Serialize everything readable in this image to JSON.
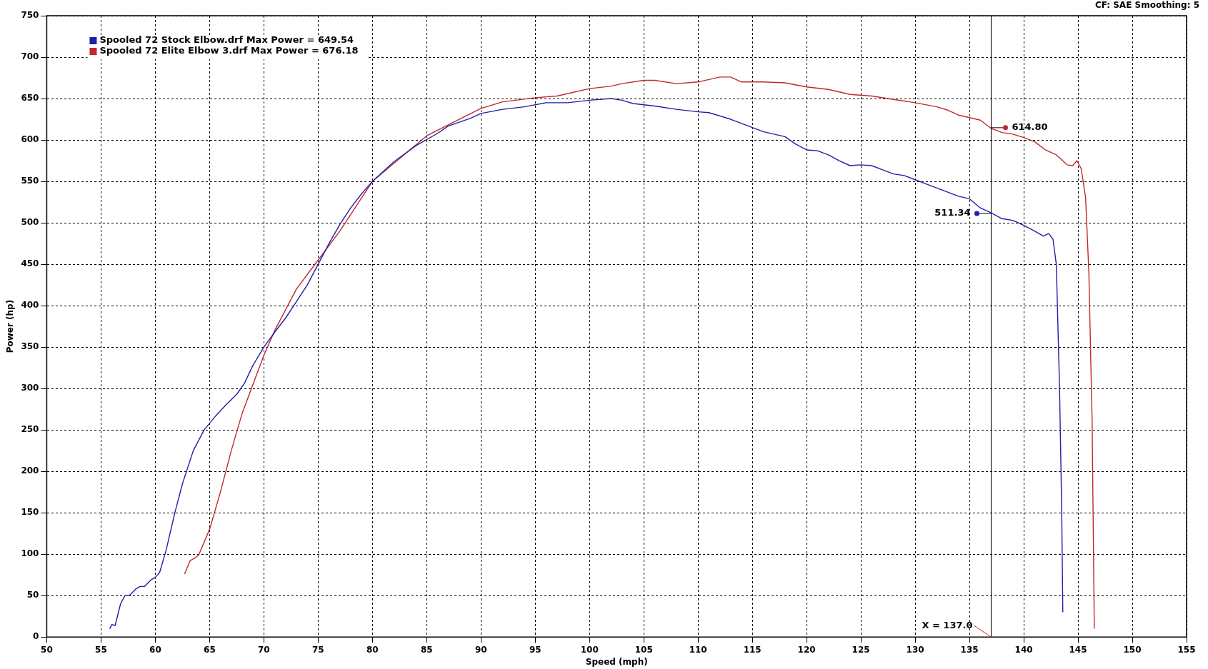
{
  "chart_data": {
    "type": "line",
    "xlabel": "Speed (mph)",
    "ylabel": "Power (hp)",
    "xlim": [
      50,
      155
    ],
    "xticks": [
      50,
      55,
      60,
      65,
      70,
      75,
      80,
      85,
      90,
      95,
      100,
      105,
      110,
      115,
      120,
      125,
      130,
      135,
      140,
      145,
      150,
      155
    ],
    "ylim": [
      0,
      750
    ],
    "yticks": [
      0,
      50,
      100,
      150,
      200,
      250,
      300,
      350,
      400,
      450,
      500,
      550,
      600,
      650,
      700,
      750
    ],
    "grid": true,
    "legend": "top left",
    "marker": "none",
    "line_style": "solid",
    "series": [
      {
        "name": "Spooled 72 Stock Elbow.drf Max Power = 649.54",
        "color": "#1f1fa8",
        "x": [
          55.8,
          56.0,
          56.3,
          56.8,
          57.2,
          57.6,
          58.2,
          58.6,
          59.0,
          59.6,
          60.0,
          60.4,
          61.0,
          61.8,
          62.5,
          63.5,
          64.5,
          65.5,
          66.5,
          67.5,
          68.2,
          69.0,
          70.0,
          71.0,
          72.0,
          73.0,
          74.0,
          75.0,
          76.0,
          77.0,
          78.0,
          79.0,
          80.0,
          82,
          84,
          86,
          87,
          89,
          90,
          92,
          94,
          96,
          98,
          100,
          102,
          103,
          104,
          106,
          108,
          110,
          111,
          113,
          115,
          116,
          118,
          119,
          120,
          121,
          122,
          123,
          124,
          125,
          126,
          127,
          128,
          129,
          130,
          131,
          132,
          133,
          134,
          135,
          136,
          137,
          138,
          139,
          140,
          141,
          141.8,
          142.3,
          142.7,
          143,
          143.3,
          143.5,
          143.6
        ],
        "values": [
          10,
          15,
          14,
          40,
          50,
          50,
          58,
          61,
          61,
          69,
          72,
          78,
          105,
          150,
          185,
          225,
          250,
          266,
          280,
          293,
          306,
          328,
          350,
          368,
          385,
          405,
          425,
          450,
          475,
          498,
          518,
          535,
          550,
          574,
          593,
          608,
          617,
          626,
          632,
          637,
          640,
          645,
          645,
          648,
          650,
          648,
          644,
          641,
          637,
          634,
          633,
          625,
          615,
          610,
          604,
          595,
          588,
          587,
          582,
          575,
          569,
          570,
          569,
          564,
          559,
          557,
          552,
          547,
          542,
          537,
          532,
          529,
          518,
          512,
          505,
          503,
          497,
          490,
          484,
          487,
          480,
          450,
          300,
          150,
          30
        ]
      },
      {
        "name": "Spooled 72 Elite Elbow 3.drf Max Power = 676.18",
        "color": "#c0282d",
        "x": [
          62.7,
          63.2,
          63.6,
          64,
          65,
          66,
          67,
          68,
          69,
          70,
          71,
          72,
          73,
          75,
          77,
          80,
          85,
          88,
          90,
          92,
          95,
          97,
          100,
          102,
          103,
          105,
          106,
          108,
          110,
          112,
          113,
          114,
          116,
          118,
          120,
          122,
          124,
          126,
          128,
          130,
          132,
          133,
          134,
          135,
          136,
          137,
          138,
          139,
          140,
          141,
          142,
          143,
          144,
          144.5,
          144.9,
          145.3,
          145.7,
          146.0,
          146.3,
          146.5
        ],
        "values": [
          76,
          92,
          95,
          99,
          130,
          175,
          225,
          270,
          305,
          340,
          370,
          395,
          420,
          455,
          490,
          550,
          605,
          625,
          638,
          646,
          651,
          653,
          662,
          665,
          668,
          672,
          672,
          668,
          670,
          676,
          676,
          670,
          670,
          669,
          664,
          661,
          655,
          653,
          649,
          645,
          640,
          636,
          630,
          627,
          624,
          614,
          609,
          607,
          603,
          598,
          588,
          582,
          570,
          569,
          575,
          565,
          530,
          440,
          260,
          10
        ]
      }
    ],
    "ref_lines": [
      {
        "axis": "x",
        "value": 137,
        "color": "#000000",
        "label": "X = 137.0"
      }
    ],
    "annotations": [
      "CF: SAE  Smoothing: 5",
      {
        "text": "614.80",
        "x": 137,
        "y": 614.8
      },
      {
        "text": "511.34",
        "x": 137,
        "y": 511.34
      }
    ]
  }
}
